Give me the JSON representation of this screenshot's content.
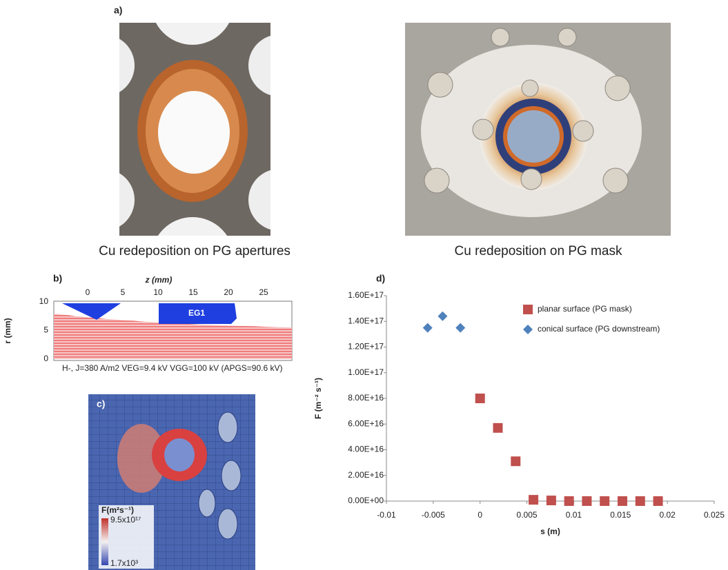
{
  "panel_a": {
    "label": "a)",
    "captions": [
      "Cu redeposition on PG apertures",
      "Cu redeposition on PG mask"
    ]
  },
  "panel_b": {
    "label": "b)",
    "xlabel": "z (mm)",
    "ylabel": "r (mm)",
    "xticks": [
      0,
      5,
      10,
      15,
      20,
      25
    ],
    "yticks": [
      0,
      5,
      10
    ],
    "electrode_label": "EG1",
    "caption": "H-, J=380 A/m2 VEG=9.4 kV VGG=100 kV  (APGS=90.6 kV)"
  },
  "panel_c": {
    "label": "c)",
    "legend_title": "F(m²s⁻¹)",
    "max_label": "9.5x10¹⁷",
    "min_label": "1.7x10³"
  },
  "panel_d_label": "d)",
  "chart_data": {
    "type": "scatter",
    "xlabel": "s (m)",
    "ylabel": "F (m⁻² s⁻¹)",
    "xlim": [
      -0.01,
      0.025
    ],
    "xticks": [
      -0.01,
      -0.005,
      0,
      0.005,
      0.01,
      0.015,
      0.02,
      0.025
    ],
    "ylim": [
      0,
      1.6e+17
    ],
    "yticks": [
      {
        "value": 0,
        "label": "0.00E+00"
      },
      {
        "value": 2e+16,
        "label": "2.00E+16"
      },
      {
        "value": 4e+16,
        "label": "4.00E+16"
      },
      {
        "value": 6e+16,
        "label": "6.00E+16"
      },
      {
        "value": 8e+16,
        "label": "8.00E+16"
      },
      {
        "value": 1e+17,
        "label": "1.00E+17"
      },
      {
        "value": 1.2e+17,
        "label": "1.20E+17"
      },
      {
        "value": 1.4e+17,
        "label": "1.40E+17"
      },
      {
        "value": 1.6e+17,
        "label": "1.60E+17"
      }
    ],
    "grid": false,
    "legend": "upper right",
    "series": [
      {
        "name": "planar surface (PG mask)",
        "color": "#c0504d",
        "marker": "square",
        "x": [
          0,
          0.0019,
          0.0038,
          0.0057,
          0.0076,
          0.0095,
          0.0114,
          0.0133,
          0.0152,
          0.0171,
          0.019
        ],
        "values": [
          8e+16,
          5.7e+16,
          3.1e+16,
          1000000000000000.0,
          500000000000000.0,
          0,
          0,
          0,
          0,
          0,
          0
        ]
      },
      {
        "name": "conical surface (PG downstream)",
        "color": "#4f81bd",
        "marker": "diamond",
        "x": [
          -0.0056,
          -0.004,
          -0.0021
        ],
        "values": [
          1.35e+17,
          1.44e+17,
          1.35e+17
        ]
      }
    ]
  }
}
